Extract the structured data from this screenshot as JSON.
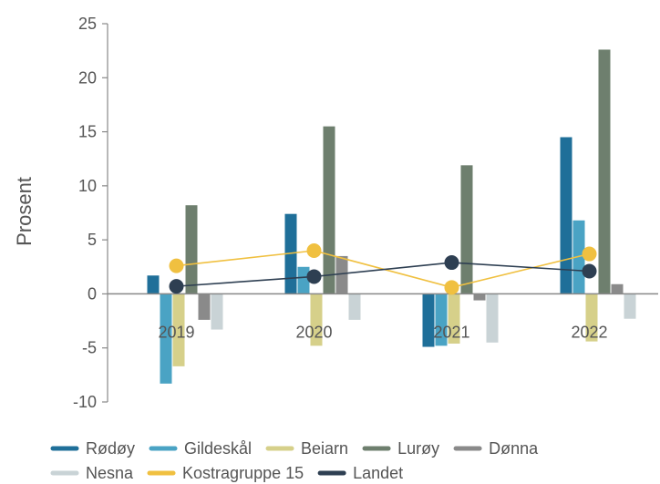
{
  "chart_data": {
    "type": "bar",
    "title": "",
    "xlabel": "",
    "ylabel": "Prosent",
    "ylim": [
      -10,
      25
    ],
    "yticks": [
      -10,
      -5,
      0,
      5,
      10,
      15,
      20,
      25
    ],
    "categories": [
      "2019",
      "2020",
      "2021",
      "2022"
    ],
    "grid": false,
    "legend_position": "bottom",
    "series": [
      {
        "name": "Rødøy",
        "kind": "bar",
        "color": "#1f6f99",
        "values": [
          1.7,
          7.4,
          -4.9,
          14.5
        ]
      },
      {
        "name": "Gildeskål",
        "kind": "bar",
        "color": "#4aa3c4",
        "values": [
          -8.3,
          2.5,
          -4.8,
          6.8
        ]
      },
      {
        "name": "Beiarn",
        "kind": "bar",
        "color": "#d6d08a",
        "values": [
          -6.7,
          -4.8,
          -4.6,
          -4.4
        ]
      },
      {
        "name": "Lurøy",
        "kind": "bar",
        "color": "#6e7f6e",
        "values": [
          8.2,
          15.5,
          11.9,
          22.6
        ]
      },
      {
        "name": "Dønna",
        "kind": "bar",
        "color": "#8a8a8a",
        "values": [
          -2.4,
          3.5,
          -0.6,
          0.9
        ]
      },
      {
        "name": "Nesna",
        "kind": "bar",
        "color": "#c9d3d6",
        "values": [
          -3.3,
          -2.4,
          -4.5,
          -2.3
        ]
      },
      {
        "name": "Kostragruppe 15",
        "kind": "line",
        "color": "#f0c040",
        "values": [
          2.6,
          4.0,
          0.6,
          3.7
        ]
      },
      {
        "name": "Landet",
        "kind": "line",
        "color": "#2e3f52",
        "values": [
          0.7,
          1.6,
          2.9,
          2.1
        ]
      }
    ]
  }
}
